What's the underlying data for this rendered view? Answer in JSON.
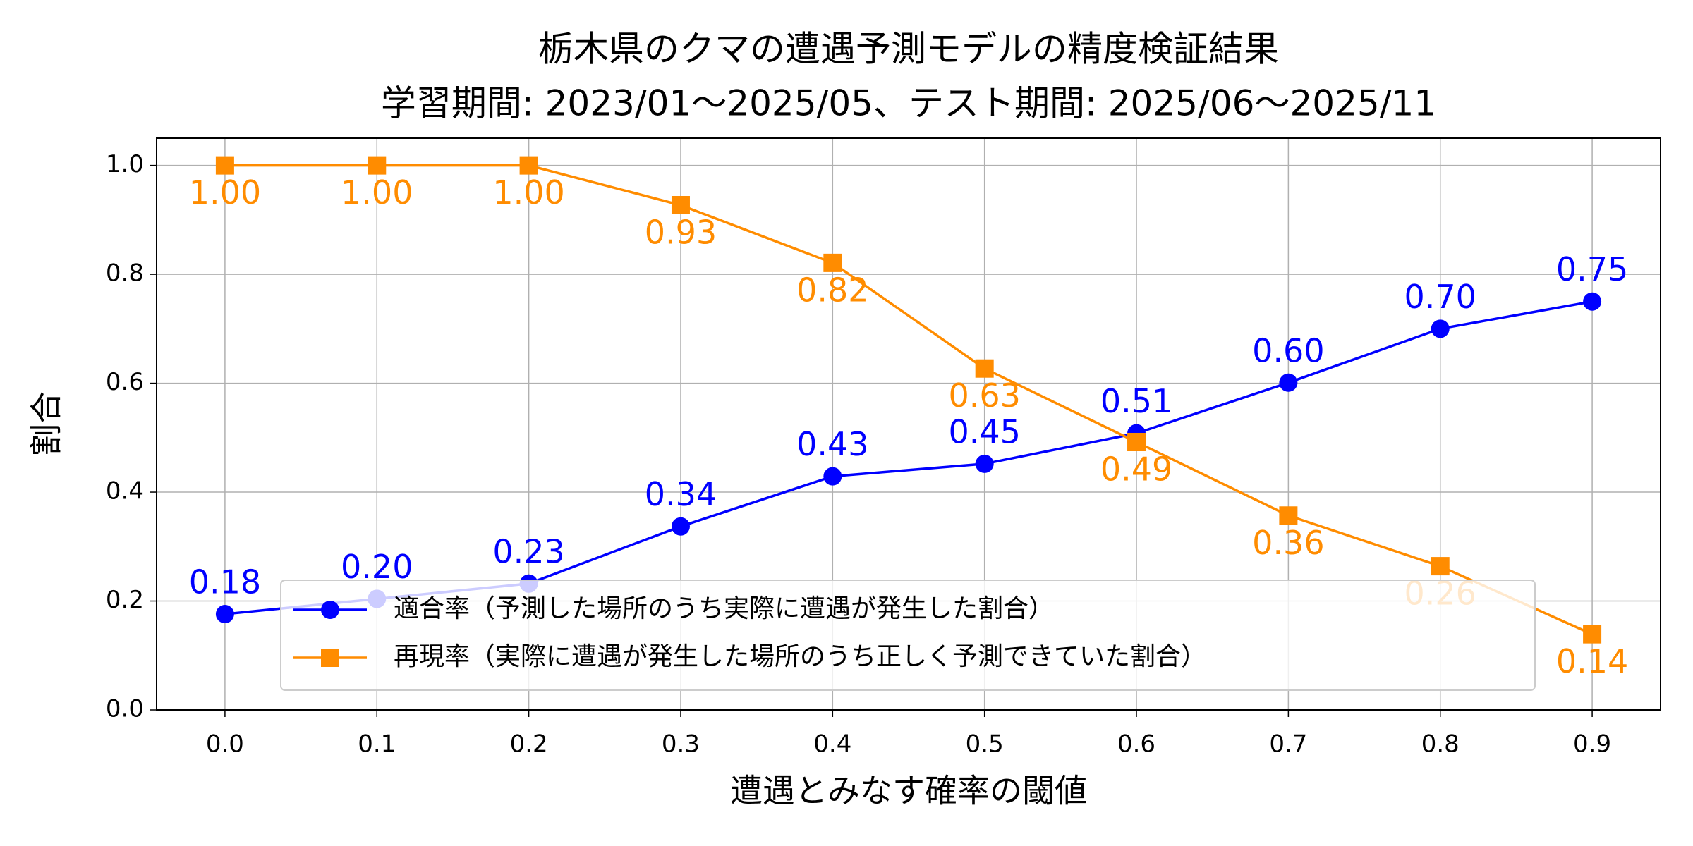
{
  "chart_data": {
    "type": "line",
    "title": "栃木県のクマの遭遇予測モデルの精度検証結果",
    "subtitle": "学習期間: 2023/01～2025/05、テスト期間: 2025/06～2025/11",
    "xlabel": "遭遇とみなす確率の閾値",
    "ylabel": "割合",
    "x": [
      0.0,
      0.1,
      0.2,
      0.3,
      0.4,
      0.5,
      0.6,
      0.7,
      0.8,
      0.9
    ],
    "series": [
      {
        "name": "適合率（予測した場所のうち実際に遭遇が発生した割合）",
        "color": "#0000ff",
        "marker": "circle",
        "label_position": "above",
        "values": [
          0.176,
          0.204,
          0.232,
          0.337,
          0.429,
          0.452,
          0.508,
          0.601,
          0.7,
          0.75
        ],
        "value_labels": [
          "0.18",
          "0.20",
          "0.23",
          "0.34",
          "0.43",
          "0.45",
          "0.51",
          "0.60",
          "0.70",
          "0.75"
        ]
      },
      {
        "name": "再現率（実際に遭遇が発生した場所のうち正しく予測できていた割合）",
        "color": "#ff8c00",
        "marker": "square",
        "label_position": "below",
        "values": [
          1.0,
          1.0,
          1.0,
          0.927,
          0.821,
          0.627,
          0.492,
          0.357,
          0.264,
          0.139
        ],
        "value_labels": [
          "1.00",
          "1.00",
          "1.00",
          "0.93",
          "0.82",
          "0.63",
          "0.49",
          "0.36",
          "0.26",
          "0.14"
        ]
      }
    ],
    "xlim": [
      -0.045,
      0.945
    ],
    "ylim": [
      0,
      1.05
    ],
    "xticks": [
      {
        "value": 0.0,
        "label": "0.0"
      },
      {
        "value": 0.1,
        "label": "0.1"
      },
      {
        "value": 0.2,
        "label": "0.2"
      },
      {
        "value": 0.3,
        "label": "0.3"
      },
      {
        "value": 0.4,
        "label": "0.4"
      },
      {
        "value": 0.5,
        "label": "0.5"
      },
      {
        "value": 0.6,
        "label": "0.6"
      },
      {
        "value": 0.7,
        "label": "0.7"
      },
      {
        "value": 0.8,
        "label": "0.8"
      },
      {
        "value": 0.9,
        "label": "0.9"
      }
    ],
    "yticks": [
      {
        "value": 0.0,
        "label": "0.0"
      },
      {
        "value": 0.2,
        "label": "0.2"
      },
      {
        "value": 0.4,
        "label": "0.4"
      },
      {
        "value": 0.6,
        "label": "0.6"
      },
      {
        "value": 0.8,
        "label": "0.8"
      },
      {
        "value": 1.0,
        "label": "1.0"
      }
    ],
    "grid": true,
    "legend": "lower center"
  }
}
